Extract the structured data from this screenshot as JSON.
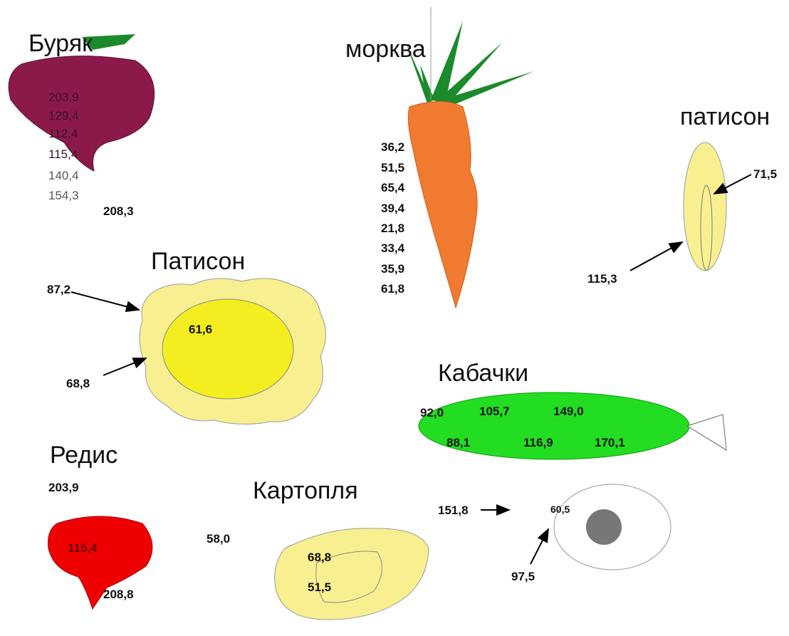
{
  "vegetables": [
    {
      "name": "Буряк",
      "labels": [
        "203,9",
        "129,4",
        "112,4",
        "115,4",
        "140,4",
        "154,3",
        "208,3"
      ]
    },
    {
      "name": "морква",
      "labels": [
        "36,2",
        "51,5",
        "65,4",
        "39,4",
        "21,8",
        "33,4",
        "35,9",
        "61,8"
      ]
    },
    {
      "name": "патисон",
      "labels": [
        "71,5",
        "115,3"
      ]
    },
    {
      "name": "Патисон",
      "labels": [
        "87,2",
        "61,6",
        "68,8"
      ]
    },
    {
      "name": "Кабачки",
      "labels": [
        "92,0",
        "105,7",
        "149,0",
        "88,1",
        "116,9",
        "170,1"
      ]
    },
    {
      "name": "Редис",
      "labels": [
        "203,9",
        "115,4",
        "208,8"
      ]
    },
    {
      "name": "Картопля",
      "labels": [
        "58,0",
        "68,8",
        "51,5"
      ]
    }
  ],
  "other": {
    "labels": [
      "151,8",
      "60,5",
      "97,5"
    ]
  }
}
